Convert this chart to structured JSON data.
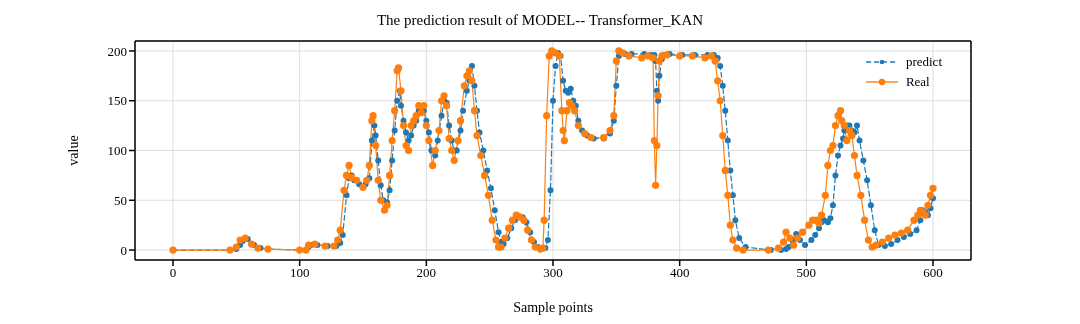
{
  "chart_data": {
    "type": "line",
    "title": "The prediction result of MODEL-- Transformer_KAN",
    "xlabel": "Sample points",
    "ylabel": "value",
    "xlim": [
      -30,
      630
    ],
    "xticks": [
      0,
      100,
      200,
      300,
      400,
      500,
      600
    ],
    "ylim": [
      -10,
      210
    ],
    "yticks": [
      0,
      50,
      100,
      150,
      200
    ],
    "grid": true,
    "legend": "top right",
    "series": [
      {
        "name": "predict",
        "color": "#1f77b4",
        "marker": "circle",
        "line_style": "dashed",
        "x": [
          0,
          45,
          50,
          53,
          55,
          59,
          64,
          69,
          75,
          100,
          107,
          109,
          114,
          122,
          129,
          132,
          134,
          137,
          139,
          141,
          143,
          147,
          152,
          155,
          157,
          159,
          160,
          162,
          164,
          166,
          169,
          171,
          173,
          175,
          177,
          179,
          180,
          182,
          184,
          186,
          188,
          190,
          192,
          194,
          196,
          198,
          200,
          202,
          204,
          207,
          209,
          212,
          214,
          216,
          218,
          220,
          222,
          224,
          227,
          229,
          232,
          234,
          236,
          238,
          240,
          242,
          245,
          248,
          251,
          254,
          257,
          259,
          261,
          264,
          267,
          270,
          273,
          276,
          279,
          282,
          285,
          288,
          292,
          294,
          296,
          298,
          300,
          302,
          304,
          306,
          308,
          310,
          312,
          314,
          316,
          318,
          320,
          323,
          327,
          332,
          340,
          345,
          348,
          350,
          352,
          354,
          357,
          362,
          372,
          377,
          380,
          381,
          382,
          383,
          384,
          386,
          388,
          392,
          402,
          412,
          422,
          427,
          430,
          432,
          434,
          436,
          438,
          440,
          442,
          444,
          447,
          452,
          472,
          480,
          484,
          486,
          489,
          492,
          495,
          499,
          504,
          507,
          510,
          512,
          514,
          517,
          519,
          521,
          523,
          525,
          527,
          529,
          530,
          532,
          534,
          536,
          538,
          540,
          542,
          545,
          548,
          551,
          554,
          557,
          562,
          567,
          572,
          577,
          582,
          587,
          590,
          592,
          594,
          596,
          598,
          600
        ],
        "values": [
          0,
          0,
          1,
          5,
          9,
          11,
          5,
          2,
          1,
          0,
          3,
          5,
          5,
          4,
          4,
          7,
          15,
          55,
          72,
          75,
          70,
          66,
          66,
          72,
          110,
          125,
          115,
          90,
          65,
          50,
          48,
          60,
          90,
          120,
          150,
          160,
          145,
          130,
          118,
          110,
          115,
          125,
          130,
          140,
          142,
          140,
          130,
          118,
          100,
          95,
          110,
          135,
          150,
          148,
          125,
          110,
          100,
          100,
          120,
          140,
          160,
          170,
          185,
          165,
          140,
          118,
          100,
          80,
          62,
          40,
          18,
          8,
          6,
          12,
          22,
          30,
          34,
          33,
          28,
          18,
          8,
          3,
          2,
          2,
          10,
          60,
          150,
          185,
          198,
          195,
          170,
          160,
          158,
          162,
          150,
          145,
          130,
          120,
          115,
          112,
          112,
          117,
          130,
          165,
          195,
          198,
          197,
          197,
          197,
          196,
          196,
          190,
          160,
          150,
          175,
          192,
          196,
          197,
          196,
          196,
          196,
          196,
          193,
          185,
          165,
          140,
          110,
          80,
          55,
          30,
          12,
          3,
          0,
          0,
          1,
          3,
          10,
          16,
          10,
          5,
          10,
          15,
          22,
          28,
          30,
          28,
          32,
          45,
          75,
          95,
          105,
          112,
          120,
          125,
          125,
          120,
          118,
          125,
          110,
          90,
          70,
          45,
          20,
          5,
          4,
          6,
          10,
          13,
          16,
          20,
          30,
          40,
          38,
          35,
          42,
          52
        ]
      },
      {
        "name": "Real",
        "color": "#ff7f0e",
        "marker": "circle",
        "line_style": "solid",
        "x": [
          0,
          45,
          50,
          53,
          57,
          62,
          67,
          75,
          100,
          105,
          107,
          112,
          120,
          127,
          130,
          132,
          135,
          137,
          139,
          141,
          145,
          150,
          153,
          155,
          157,
          158,
          160,
          162,
          164,
          167,
          169,
          171,
          173,
          175,
          177,
          178,
          180,
          182,
          184,
          186,
          188,
          190,
          192,
          194,
          196,
          198,
          200,
          202,
          205,
          207,
          210,
          212,
          214,
          216,
          218,
          220,
          222,
          225,
          227,
          230,
          232,
          234,
          236,
          238,
          240,
          243,
          246,
          249,
          252,
          255,
          257,
          259,
          262,
          265,
          268,
          271,
          274,
          277,
          280,
          283,
          286,
          290,
          292,
          293,
          295,
          297,
          299,
          302,
          305,
          307,
          308,
          309,
          311,
          313,
          315,
          317,
          320,
          325,
          330,
          340,
          345,
          348,
          350,
          352,
          355,
          360,
          370,
          375,
          379,
          380,
          381,
          382,
          383,
          384,
          386,
          390,
          400,
          410,
          420,
          425,
          428,
          430,
          432,
          434,
          436,
          438,
          440,
          442,
          445,
          450,
          470,
          478,
          482,
          484,
          487,
          490,
          493,
          497,
          502,
          505,
          508,
          510,
          512,
          515,
          517,
          519,
          521,
          523,
          525,
          527,
          528,
          530,
          532,
          534,
          536,
          538,
          540,
          543,
          546,
          549,
          552,
          555,
          560,
          565,
          570,
          575,
          580,
          585,
          588,
          590,
          592,
          594,
          596,
          598,
          600
        ],
        "values": [
          0,
          0,
          3,
          10,
          12,
          6,
          2,
          1,
          0,
          0,
          5,
          6,
          4,
          4,
          10,
          20,
          60,
          75,
          85,
          73,
          70,
          63,
          70,
          85,
          130,
          135,
          105,
          70,
          50,
          40,
          45,
          75,
          110,
          140,
          180,
          183,
          160,
          125,
          105,
          100,
          125,
          130,
          135,
          145,
          138,
          145,
          125,
          110,
          85,
          100,
          120,
          150,
          155,
          145,
          112,
          100,
          90,
          110,
          130,
          165,
          175,
          180,
          170,
          140,
          115,
          95,
          75,
          55,
          30,
          10,
          3,
          3,
          12,
          22,
          30,
          35,
          33,
          30,
          20,
          10,
          3,
          1,
          2,
          30,
          135,
          195,
          200,
          198,
          195,
          140,
          120,
          110,
          140,
          148,
          145,
          140,
          125,
          117,
          113,
          113,
          120,
          135,
          190,
          200,
          198,
          195,
          193,
          195,
          193,
          110,
          65,
          105,
          155,
          190,
          195,
          196,
          195,
          195,
          193,
          195,
          190,
          170,
          150,
          115,
          80,
          55,
          25,
          10,
          2,
          0,
          0,
          2,
          8,
          18,
          12,
          5,
          12,
          18,
          25,
          30,
          30,
          27,
          35,
          55,
          85,
          100,
          105,
          125,
          135,
          140,
          130,
          125,
          110,
          120,
          115,
          95,
          75,
          55,
          30,
          10,
          3,
          5,
          8,
          12,
          15,
          17,
          20,
          30,
          35,
          40,
          38,
          35,
          45,
          55,
          62
        ]
      }
    ]
  }
}
